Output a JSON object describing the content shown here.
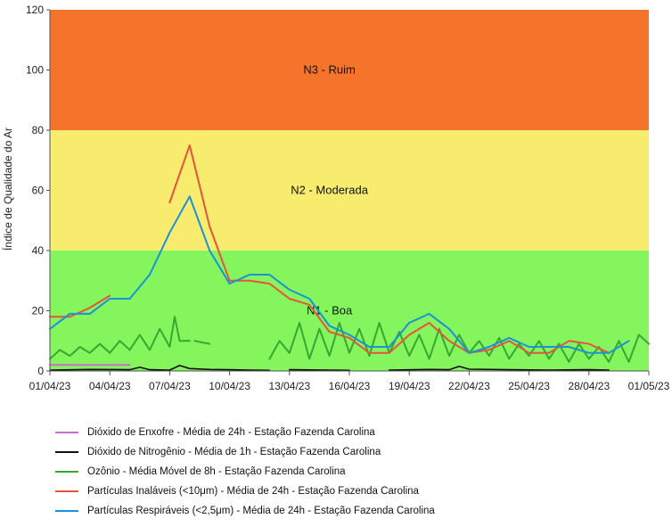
{
  "chart_data": {
    "type": "line",
    "title": "",
    "xlabel": "",
    "ylabel": "Índice de Qualidade do Ar",
    "ylim": [
      0,
      120
    ],
    "yticks": [
      0,
      20,
      40,
      60,
      80,
      100,
      120
    ],
    "xlim": [
      "2023-04-01",
      "2023-05-01"
    ],
    "xtick_labels": [
      "01/04/23",
      "04/04/23",
      "07/04/23",
      "10/04/23",
      "13/04/23",
      "16/04/23",
      "19/04/23",
      "22/04/23",
      "25/04/23",
      "28/04/23",
      "01/05/23"
    ],
    "xtick_dates": [
      "2023-04-01",
      "2023-04-04",
      "2023-04-07",
      "2023-04-10",
      "2023-04-13",
      "2023-04-16",
      "2023-04-19",
      "2023-04-22",
      "2023-04-25",
      "2023-04-28",
      "2023-05-01"
    ],
    "bands": [
      {
        "label": "N1 - Boa",
        "from": 0,
        "to": 40,
        "color": "#84f55c",
        "label_x": "2023-04-15",
        "label_y": 20
      },
      {
        "label": "N2 - Moderada",
        "from": 40,
        "to": 80,
        "color": "#f7ec6e",
        "label_x": "2023-04-15",
        "label_y": 60
      },
      {
        "label": "N3 - Ruim",
        "from": 80,
        "to": 120,
        "color": "#f4742c",
        "label_x": "2023-04-15",
        "label_y": 100
      }
    ],
    "legend_position": "bottom",
    "series": [
      {
        "name": "Dióxido de Enxofre - Média de 24h - Estação Fazenda Carolina",
        "color": "#c86ed2",
        "segments": [
          [
            [
              "2023-04-01",
              2
            ],
            [
              "2023-04-02",
              2
            ],
            [
              "2023-04-03",
              2
            ],
            [
              "2023-04-04",
              2
            ],
            [
              "2023-04-05",
              2
            ]
          ]
        ]
      },
      {
        "name": "Dióxido de Nitrogênio - Média de 1h - Estação Fazenda Carolina",
        "color": "#111111",
        "segments": [
          [
            [
              "2023-04-01",
              0.3
            ],
            [
              "2023-04-03",
              0.5
            ],
            [
              "2023-04-05",
              0.4
            ],
            [
              "2023-04-05 12:00",
              1.2
            ],
            [
              "2023-04-06",
              0.4
            ],
            [
              "2023-04-07",
              0.3
            ],
            [
              "2023-04-07 12:00",
              1.8
            ],
            [
              "2023-04-08",
              0.8
            ],
            [
              "2023-04-09",
              0.5
            ],
            [
              "2023-04-10",
              0.4
            ],
            [
              "2023-04-11",
              0.3
            ],
            [
              "2023-04-12",
              0.2
            ]
          ],
          [
            [
              "2023-04-13",
              0.4
            ],
            [
              "2023-04-15",
              0.3
            ],
            [
              "2023-04-16",
              0.2
            ]
          ],
          [
            [
              "2023-04-18",
              0.3
            ],
            [
              "2023-04-20",
              0.5
            ],
            [
              "2023-04-21",
              0.4
            ],
            [
              "2023-04-21 12:00",
              1.5
            ],
            [
              "2023-04-22",
              0.6
            ],
            [
              "2023-04-24",
              0.4
            ],
            [
              "2023-04-26",
              0.3
            ],
            [
              "2023-04-28",
              0.4
            ],
            [
              "2023-04-29",
              0.3
            ]
          ]
        ]
      },
      {
        "name": "Ozônio - Média Móvel de 8h - Estação Fazenda Carolina",
        "color": "#35a833",
        "segments": [
          [
            [
              "2023-04-01",
              4
            ],
            [
              "2023-04-01 12:00",
              7
            ],
            [
              "2023-04-02",
              5
            ],
            [
              "2023-04-02 12:00",
              8
            ],
            [
              "2023-04-03",
              6
            ],
            [
              "2023-04-03 12:00",
              9
            ],
            [
              "2023-04-04",
              6
            ],
            [
              "2023-04-04 12:00",
              10
            ],
            [
              "2023-04-05",
              7
            ],
            [
              "2023-04-05 12:00",
              12
            ],
            [
              "2023-04-06",
              7
            ],
            [
              "2023-04-06 12:00",
              14
            ],
            [
              "2023-04-07",
              8
            ],
            [
              "2023-04-07 06:00",
              18
            ],
            [
              "2023-04-07 12:00",
              10
            ],
            [
              "2023-04-08",
              10
            ]
          ],
          [
            [
              "2023-04-08 06:00",
              10
            ],
            [
              "2023-04-09",
              9
            ]
          ],
          [
            [
              "2023-04-12",
              4
            ],
            [
              "2023-04-12 12:00",
              10
            ],
            [
              "2023-04-13",
              6
            ],
            [
              "2023-04-13 12:00",
              16
            ],
            [
              "2023-04-14",
              4
            ],
            [
              "2023-04-14 12:00",
              14
            ],
            [
              "2023-04-15",
              5
            ],
            [
              "2023-04-15 12:00",
              16
            ],
            [
              "2023-04-16",
              6
            ],
            [
              "2023-04-16 12:00",
              14
            ],
            [
              "2023-04-17",
              5
            ],
            [
              "2023-04-17 12:00",
              16
            ],
            [
              "2023-04-18",
              6
            ],
            [
              "2023-04-18 12:00",
              13
            ],
            [
              "2023-04-19",
              5
            ],
            [
              "2023-04-19 12:00",
              12
            ],
            [
              "2023-04-20",
              4
            ],
            [
              "2023-04-20 12:00",
              14
            ],
            [
              "2023-04-21",
              5
            ],
            [
              "2023-04-21 12:00",
              12
            ],
            [
              "2023-04-22",
              6
            ],
            [
              "2023-04-22 12:00",
              10
            ],
            [
              "2023-04-23",
              5
            ],
            [
              "2023-04-23 12:00",
              11
            ],
            [
              "2023-04-24",
              4
            ],
            [
              "2023-04-24 12:00",
              9
            ],
            [
              "2023-04-25",
              5
            ],
            [
              "2023-04-25 12:00",
              10
            ],
            [
              "2023-04-26",
              4
            ],
            [
              "2023-04-26 12:00",
              9
            ],
            [
              "2023-04-27",
              3
            ],
            [
              "2023-04-27 12:00",
              9
            ],
            [
              "2023-04-28",
              4
            ],
            [
              "2023-04-28 12:00",
              8
            ],
            [
              "2023-04-29",
              3
            ],
            [
              "2023-04-29 12:00",
              10
            ],
            [
              "2023-04-30",
              3
            ],
            [
              "2023-04-30 12:00",
              12
            ],
            [
              "2023-05-01",
              9
            ]
          ]
        ]
      },
      {
        "name": "Partículas Inaláveis (<10μm) - Média de 24h - Estação Fazenda Carolina",
        "color": "#e8533c",
        "segments": [
          [
            [
              "2023-04-01",
              18
            ],
            [
              "2023-04-02",
              18
            ],
            [
              "2023-04-03",
              21
            ],
            [
              "2023-04-04",
              25
            ]
          ],
          [
            [
              "2023-04-07",
              56
            ],
            [
              "2023-04-08",
              75
            ],
            [
              "2023-04-09",
              48
            ],
            [
              "2023-04-10",
              30
            ],
            [
              "2023-04-11",
              30
            ],
            [
              "2023-04-12",
              29
            ],
            [
              "2023-04-13",
              24
            ],
            [
              "2023-04-14",
              22
            ],
            [
              "2023-04-15",
              13
            ],
            [
              "2023-04-16",
              11
            ],
            [
              "2023-04-17",
              6
            ],
            [
              "2023-04-18",
              6
            ],
            [
              "2023-04-19",
              12
            ],
            [
              "2023-04-20",
              16
            ],
            [
              "2023-04-21",
              10
            ],
            [
              "2023-04-22",
              6
            ],
            [
              "2023-04-23",
              7
            ],
            [
              "2023-04-24",
              10
            ],
            [
              "2023-04-25",
              6
            ],
            [
              "2023-04-26",
              6
            ],
            [
              "2023-04-27",
              10
            ],
            [
              "2023-04-28",
              9
            ],
            [
              "2023-04-29",
              6
            ]
          ]
        ]
      },
      {
        "name": "Partículas Respiráveis (<2,5μm) - Média de 24h - Estação Fazenda Carolina",
        "color": "#1a91d9",
        "segments": [
          [
            [
              "2023-04-01",
              14
            ],
            [
              "2023-04-02",
              19
            ],
            [
              "2023-04-03",
              19
            ],
            [
              "2023-04-04",
              24
            ],
            [
              "2023-04-05",
              24
            ],
            [
              "2023-04-06",
              32
            ],
            [
              "2023-04-07",
              46
            ],
            [
              "2023-04-08",
              58
            ],
            [
              "2023-04-09",
              40
            ],
            [
              "2023-04-10",
              29
            ],
            [
              "2023-04-11",
              32
            ],
            [
              "2023-04-12",
              32
            ],
            [
              "2023-04-13",
              27
            ],
            [
              "2023-04-14",
              24
            ],
            [
              "2023-04-15",
              15
            ],
            [
              "2023-04-16",
              12
            ],
            [
              "2023-04-17",
              8
            ],
            [
              "2023-04-18",
              8
            ],
            [
              "2023-04-19",
              16
            ],
            [
              "2023-04-20",
              19
            ],
            [
              "2023-04-21",
              14
            ],
            [
              "2023-04-22",
              6
            ],
            [
              "2023-04-23",
              8
            ],
            [
              "2023-04-24",
              11
            ],
            [
              "2023-04-25",
              8
            ],
            [
              "2023-04-26",
              8
            ],
            [
              "2023-04-27",
              8
            ],
            [
              "2023-04-28",
              6
            ],
            [
              "2023-04-29",
              6
            ],
            [
              "2023-04-30",
              10
            ]
          ]
        ]
      }
    ]
  }
}
